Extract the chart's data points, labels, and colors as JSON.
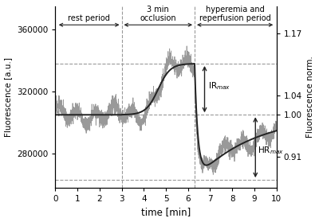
{
  "xlim": [
    0,
    10
  ],
  "ylim_left": [
    258000,
    375000
  ],
  "ylim_right": [
    0.845,
    1.228
  ],
  "xlabel": "time [min]",
  "ylabel_left": "Fluorescence [a.u.]",
  "ylabel_right": "Fluorescence norm.",
  "baseline": 305000,
  "peak_value": 338000,
  "trough_value": 263000,
  "occlusion_start": 3.0,
  "occlusion_end": 6.3,
  "ir_max_label": "IR$_{max}$",
  "hr_max_label": "HR$_{max}$",
  "rest_period_label": "rest period",
  "occlusion_label": "3 min\nocclusion",
  "hyperemia_label": "hyperemia and\nreperfusion period",
  "noise_amplitude": 7000,
  "noise_freq": 7,
  "bg_color": "#ffffff",
  "line_color_raw": "#999999",
  "line_color_smooth": "#222222",
  "dashed_color": "#999999",
  "arrow_color": "#222222",
  "xticks": [
    0,
    1,
    2,
    3,
    4,
    5,
    6,
    7,
    8,
    9,
    10
  ],
  "yticks_left": [
    280000,
    320000,
    360000
  ],
  "yticks_right": [
    0.91,
    1.0,
    1.04,
    1.17
  ]
}
